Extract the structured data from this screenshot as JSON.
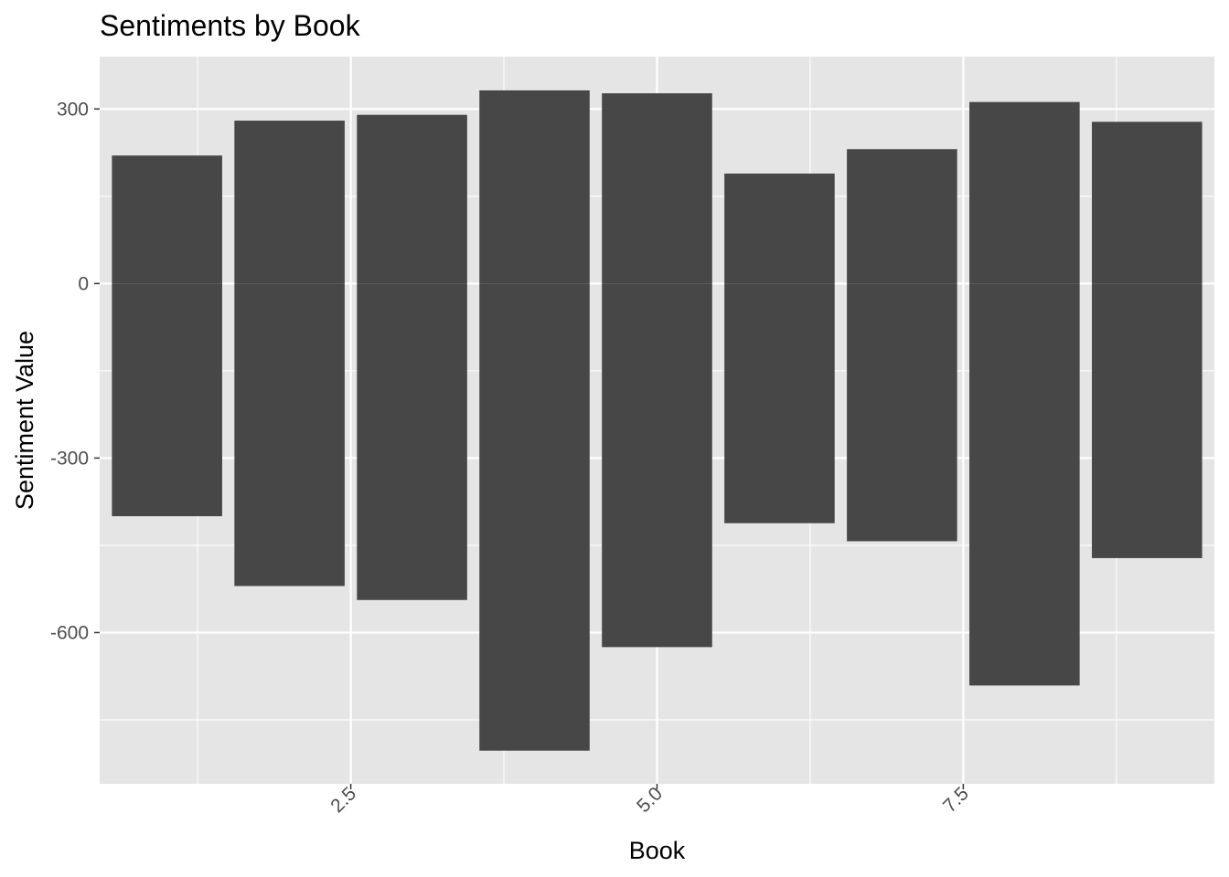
{
  "chart_data": {
    "type": "bar",
    "title": "Sentiments by Book",
    "xlabel": "Book",
    "ylabel": "Sentiment Value",
    "x": [
      1,
      2,
      3,
      4,
      5,
      6,
      7,
      8,
      9
    ],
    "series": [
      {
        "values": [
          220,
          280,
          290,
          332,
          327,
          189,
          231,
          312,
          278
        ]
      },
      {
        "values": [
          -400,
          -520,
          -544,
          -803,
          -625,
          -412,
          -443,
          -691,
          -472
        ]
      }
    ],
    "xlim": [
      0.45,
      9.55
    ],
    "ylim": [
      -860,
      390
    ],
    "x_ticks": [
      2.5,
      5.0,
      7.5
    ],
    "x_tick_labels": [
      "2.5",
      "5.0",
      "7.5"
    ],
    "x_minor_ticks": [
      1.25,
      3.75,
      6.25,
      8.75
    ],
    "y_ticks": [
      300,
      0,
      -300,
      -600
    ],
    "y_tick_labels": [
      "300",
      "0",
      "-300",
      "-600"
    ],
    "y_minor_ticks": [
      150,
      -150,
      -450,
      -750
    ],
    "bar_width": 0.9,
    "grid": true,
    "colors": {
      "bar": "#474747",
      "panel": "#e5e5e5",
      "grid": "#ffffff",
      "tick_text": "#4d4d4d",
      "tick_mark": "#333333"
    }
  }
}
